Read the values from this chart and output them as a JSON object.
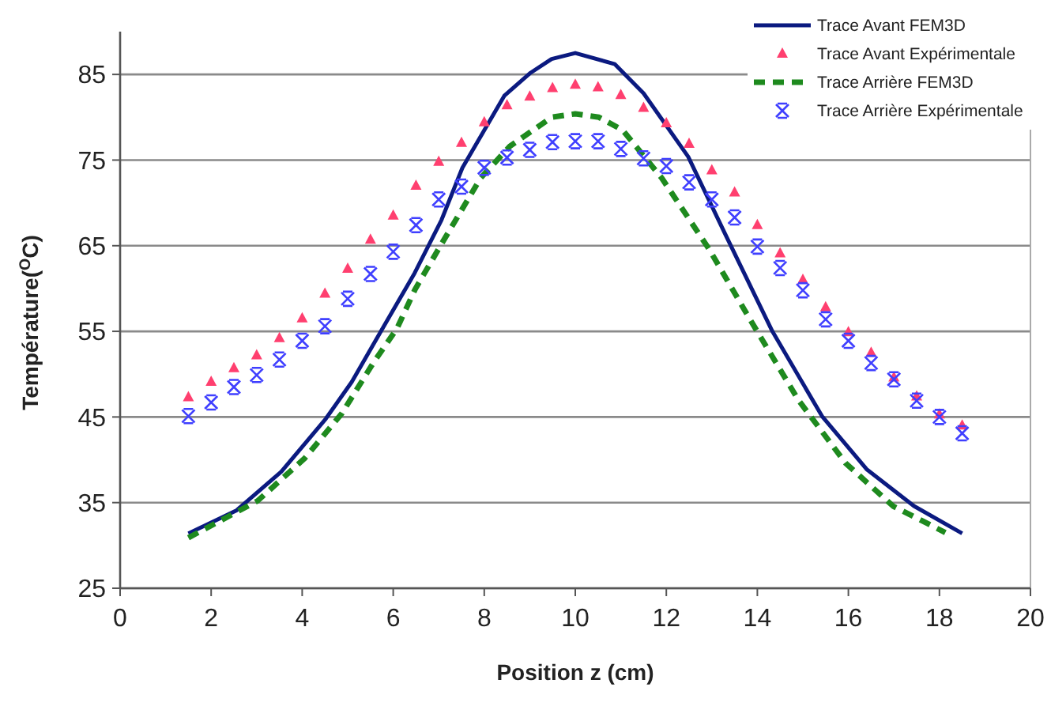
{
  "chart_data": {
    "type": "line",
    "xlabel": "Position z (cm)",
    "ylabel": "Température($^{O}$C)",
    "xlim": [
      0,
      20
    ],
    "xticks": [
      0,
      2,
      4,
      6,
      8,
      10,
      12,
      14,
      16,
      18,
      20
    ],
    "ylim": [
      25,
      90
    ],
    "yticks": [
      25,
      35,
      45,
      55,
      65,
      75,
      85
    ],
    "grid": "y",
    "legend": "top right",
    "series": [
      {
        "name": "Trace Avant  FEM3D",
        "color": "#0b1a80",
        "line_style": "solid",
        "marker": "none",
        "x": [
          1.5,
          2.56,
          3.54,
          4.52,
          5.09,
          5.73,
          6.47,
          7.06,
          7.52,
          8.44,
          9.02,
          9.48,
          10,
          10.87,
          11.5,
          12.48,
          13.29,
          14.33,
          15.42,
          16.4,
          17.44,
          18.5
        ],
        "values": [
          31.4,
          34.1,
          38.6,
          44.8,
          49.1,
          55.0,
          61.8,
          68.0,
          74.1,
          82.5,
          85.2,
          86.8,
          87.5,
          86.2,
          82.8,
          75.4,
          66.4,
          55.0,
          45.1,
          38.9,
          34.6,
          31.4
        ]
      },
      {
        "name": "Trace Avant Expérimentale",
        "type": "scatter",
        "color": "#ff3f6f",
        "marker": "triangle",
        "x": [
          1.5,
          2,
          2.5,
          3,
          3.5,
          4,
          4.5,
          5,
          5.5,
          6,
          6.5,
          7,
          7.5,
          8,
          8.5,
          9,
          9.5,
          10,
          10.5,
          11,
          11.5,
          12,
          12.5,
          13,
          13.5,
          14,
          14.5,
          15,
          15.5,
          16,
          16.5,
          17,
          17.5,
          18,
          18.5
        ],
        "values": [
          47.3,
          49.1,
          50.7,
          52.2,
          54.2,
          56.5,
          59.4,
          62.3,
          65.7,
          68.5,
          72.0,
          74.8,
          77.0,
          79.4,
          81.4,
          82.4,
          83.4,
          83.8,
          83.5,
          82.6,
          81.1,
          79.3,
          76.9,
          73.8,
          71.2,
          67.4,
          64.1,
          61.0,
          57.8,
          54.9,
          52.5,
          49.6,
          47.4,
          45.3,
          44.0
        ]
      },
      {
        "name": "Trace Arrière FEM3D",
        "color": "#1e8a1e",
        "line_style": "dashed",
        "marker": "none",
        "x": [
          1.5,
          3.02,
          4.06,
          4.87,
          5.56,
          6.08,
          6.48,
          7.06,
          7.92,
          8.56,
          9.48,
          10,
          10.52,
          11.04,
          11.9,
          12.94,
          13.86,
          14.9,
          15.94,
          16.98,
          18.13
        ],
        "values": [
          30.9,
          35.2,
          40.2,
          45.4,
          51.3,
          55.3,
          59.9,
          65.2,
          72.9,
          76.6,
          80.0,
          80.4,
          80.0,
          78.5,
          72.9,
          64.6,
          56.2,
          47.0,
          39.6,
          34.6,
          31.5
        ]
      },
      {
        "name": "Trace Arrière Expérimentale",
        "type": "scatter",
        "color": "#3f3fff",
        "marker": "cross",
        "x": [
          1.5,
          2,
          2.5,
          3,
          3.5,
          4,
          4.5,
          5,
          5.5,
          6,
          6.5,
          7,
          7.5,
          8,
          8.5,
          9,
          9.5,
          10,
          10.5,
          11,
          11.5,
          12,
          12.5,
          13,
          13.5,
          14,
          14.5,
          15,
          15.5,
          16,
          16.5,
          17,
          17.5,
          18,
          18.5
        ],
        "values": [
          45.1,
          46.7,
          48.5,
          49.9,
          51.7,
          53.9,
          55.6,
          58.8,
          61.7,
          64.3,
          67.4,
          70.4,
          71.9,
          74.1,
          75.3,
          76.2,
          77.1,
          77.2,
          77.2,
          76.3,
          75.2,
          74.3,
          72.4,
          70.4,
          68.3,
          64.9,
          62.4,
          59.8,
          56.4,
          53.9,
          51.3,
          49.4,
          46.9,
          45.0,
          43.1
        ]
      }
    ]
  }
}
